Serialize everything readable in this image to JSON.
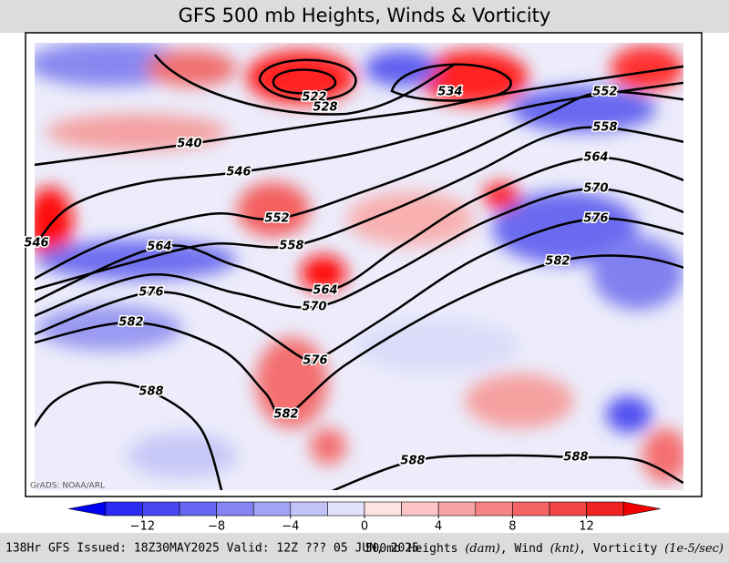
{
  "header": {
    "title": "GFS 500 mb Heights, Winds & Vorticity"
  },
  "map": {
    "credit": "GrADS: NOAA/ARL",
    "contours": [
      522,
      528,
      534,
      540,
      546,
      552,
      558,
      564,
      570,
      576,
      582,
      588
    ]
  },
  "colorbar": {
    "levels": [
      -16,
      -14,
      -12,
      -10,
      -8,
      -6,
      -4,
      -2,
      0,
      2,
      4,
      6,
      8,
      10,
      12,
      14,
      16
    ],
    "colors": [
      "#0000f0",
      "#2a2af2",
      "#4848f2",
      "#6666f2",
      "#8484f4",
      "#a2a2f6",
      "#c2c2f8",
      "#e2e2fb",
      "#ffe2e2",
      "#fcc4c4",
      "#f8a4a4",
      "#f68484",
      "#f46464",
      "#f24444",
      "#f02222",
      "#f00000"
    ],
    "ticks": [
      {
        "value": -12,
        "label": "−12"
      },
      {
        "value": -8,
        "label": "−8"
      },
      {
        "value": -4,
        "label": "−4"
      },
      0,
      4,
      8,
      12
    ]
  },
  "footer": {
    "left": "138Hr GFS Issued: 18Z30MAY2025 Valid: 12Z ??? 05 JUN, 2025",
    "right": [
      {
        "text": "500mb Heights ",
        "italic": false
      },
      {
        "text": "(dam)",
        "italic": true
      },
      {
        "text": ", Wind ",
        "italic": false
      },
      {
        "text": "(knt)",
        "italic": true
      },
      {
        "text": ", Vorticity ",
        "italic": false
      },
      {
        "text": "(1e-5/sec)",
        "italic": true
      }
    ]
  }
}
